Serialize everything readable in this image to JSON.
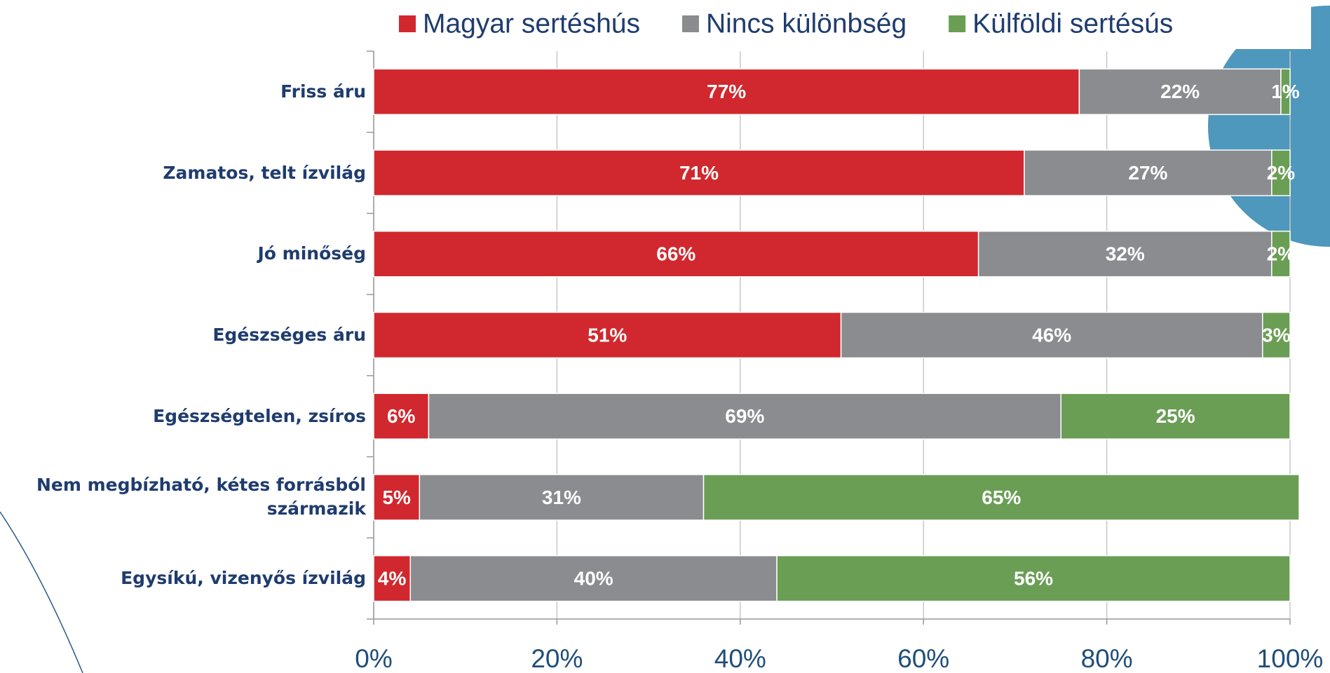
{
  "chart_data": {
    "type": "stacked-bar-horizontal",
    "categories": [
      "Friss áru",
      "Zamatos, telt ízvilág",
      "Jó minőség",
      "Egészséges áru",
      "Egészségtelen, zsíros",
      "Nem megbízható, kétes forrásból származik",
      "Egysíkú, vizenyős ízvilág"
    ],
    "series": [
      {
        "name": "Magyar sertéshús",
        "color": "#d0282e",
        "values": [
          77,
          71,
          66,
          51,
          6,
          5,
          4
        ],
        "value_labels": [
          "77%",
          "71%",
          "66%",
          "51%",
          "6%",
          "5%",
          "4%"
        ]
      },
      {
        "name": "Nincs különbség",
        "color": "#8a8c8f",
        "values": [
          22,
          27,
          32,
          46,
          69,
          31,
          40
        ],
        "value_labels": [
          "22%",
          "27%",
          "32%",
          "46%",
          "69%",
          "31%",
          "40%"
        ]
      },
      {
        "name": "Külföldi sertésús",
        "color": "#6a9e55",
        "values": [
          1,
          2,
          2,
          3,
          25,
          65,
          56
        ],
        "value_labels": [
          "1%",
          "2%",
          "2%",
          "3%",
          "25%",
          "65%",
          "56%"
        ]
      }
    ],
    "xlim": [
      0,
      100
    ],
    "xticks": [
      {
        "value": 0,
        "label": "0%"
      },
      {
        "value": 20,
        "label": "20%"
      },
      {
        "value": 40,
        "label": "40%"
      },
      {
        "value": 60,
        "label": "60%"
      },
      {
        "value": 80,
        "label": "80%"
      },
      {
        "value": 100,
        "label": "100%"
      }
    ],
    "grid": true
  }
}
